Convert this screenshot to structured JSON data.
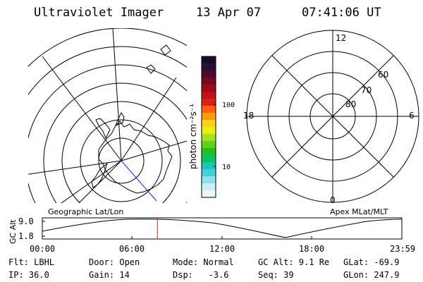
{
  "header": {
    "title": "Ultraviolet Imager",
    "date": "13 Apr 07",
    "time": "07:41:06 UT"
  },
  "colorbar": {
    "unit": "photon cm⁻²s⁻¹",
    "ticks": [
      "100",
      "10"
    ],
    "colors": [
      "#1a0a2a",
      "#2a0f3a",
      "#4b0a2a",
      "#7a0820",
      "#a00a1a",
      "#c0121a",
      "#e02018",
      "#ff6010",
      "#ff9a10",
      "#ffd018",
      "#e8f010",
      "#a8e020",
      "#60d018",
      "#20c020",
      "#10c060",
      "#18c8b0",
      "#40d0e0",
      "#90e0f0",
      "#c8eef8",
      "#e8f6fb"
    ]
  },
  "left_map": {
    "label": "Geographic Lat/Lon"
  },
  "right_map": {
    "label": "Apex MLat/MLT",
    "mlt_labels": [
      "12",
      "18",
      "6",
      "0"
    ],
    "lat_labels": [
      "60",
      "70",
      "80"
    ]
  },
  "timeline": {
    "axis_label": "GC Alt",
    "y_ticks": [
      "9.0",
      "1.8"
    ],
    "x_ticks": [
      "00:00",
      "06:00",
      "12:00",
      "18:00",
      "23:59"
    ],
    "cursor_time_hours": 7.685
  },
  "status": {
    "row1": [
      "Flt: LBHL",
      "Door: Open",
      "Mode: Normal",
      "GC Alt: 9.1 Re",
      "GLat: -69.9"
    ],
    "row2": [
      "IP: 36.0",
      "Gain: 14",
      "Dsp:   -3.6",
      "Seq: 39",
      "GLon: 247.9"
    ]
  }
}
